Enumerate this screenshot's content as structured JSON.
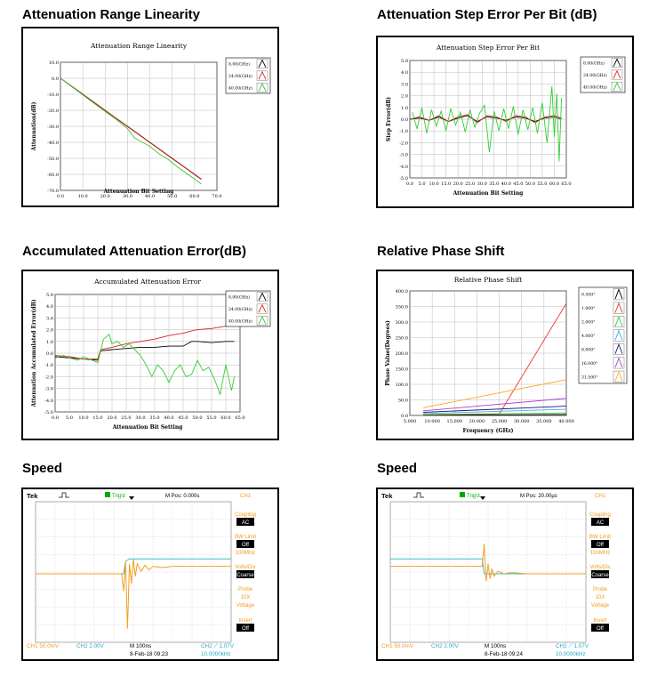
{
  "sections": {
    "s1": "Attenuation Range Linearity",
    "s2": "Attenuation Step Error Per Bit (dB)",
    "s3": "Accumulated Attenuation Error(dB)",
    "s4": "Relative Phase Shift",
    "s5": "Speed",
    "s6": "Speed"
  },
  "chart_data": [
    {
      "type": "line",
      "title": "Attenuation Range Linearity",
      "xlabel": "Attenuation Bit Setting",
      "ylabel": "Attenuation(dB)",
      "xlim": [
        0,
        70
      ],
      "ylim": [
        -70,
        10
      ],
      "xticks": [
        "0.0",
        "10.0",
        "20.0",
        "30.0",
        "40.0",
        "50.0",
        "60.0",
        "70.0"
      ],
      "yticks": [
        "10.0",
        "0.0",
        "-10.0",
        "-20.0",
        "-30.0",
        "-40.0",
        "-50.0",
        "-60.0",
        "-70.0"
      ],
      "legend_position": "top-right",
      "grid": true,
      "series": [
        {
          "name": "8.00(GHz)",
          "color": "#000000",
          "x": [
            0,
            8,
            16,
            24,
            32,
            40,
            48,
            56,
            63
          ],
          "y": [
            0,
            -7.9,
            -16,
            -24,
            -32,
            -40,
            -48,
            -56,
            -63
          ]
        },
        {
          "name": "24.00(GHz)",
          "color": "#dd2222",
          "x": [
            0,
            8,
            16,
            24,
            32,
            40,
            48,
            56,
            63
          ],
          "y": [
            0,
            -8,
            -16.1,
            -24.1,
            -32.2,
            -40.1,
            -48.2,
            -56.1,
            -63.2
          ]
        },
        {
          "name": "40.00(GHz)",
          "color": "#33cc33",
          "x": [
            0,
            5,
            10,
            15,
            20,
            25,
            30,
            33,
            36,
            40,
            44,
            48,
            52,
            56,
            60,
            63
          ],
          "y": [
            0,
            -5.2,
            -10.4,
            -15.6,
            -20.8,
            -25.8,
            -31.5,
            -37,
            -39.5,
            -42.5,
            -47,
            -50.5,
            -55,
            -59,
            -63,
            -66
          ]
        }
      ]
    },
    {
      "type": "line",
      "title": "Attenuation Step Error Per Bit",
      "xlabel": "Attenuation Bit Setting",
      "ylabel": "Step Error(dB)",
      "xlim": [
        0,
        65
      ],
      "ylim": [
        -5,
        5
      ],
      "xticks": [
        "0.0",
        "5.0",
        "10.0",
        "15.0",
        "20.0",
        "25.0",
        "30.0",
        "35.0",
        "40.0",
        "45.0",
        "50.0",
        "55.0",
        "60.0",
        "65.0"
      ],
      "yticks": [
        "5.0",
        "4.0",
        "3.0",
        "2.0",
        "1.0",
        "0.0",
        "-1.0",
        "-2.0",
        "-3.0",
        "-4.0",
        "-5.0"
      ],
      "legend_position": "top-right",
      "grid": true,
      "series": [
        {
          "name": "8.00(GHz)",
          "color": "#000000",
          "x": [
            0,
            4,
            8,
            12,
            16,
            20,
            24,
            28,
            32,
            36,
            40,
            44,
            48,
            52,
            56,
            60,
            63
          ],
          "y": [
            0,
            0.1,
            -0.1,
            0.2,
            -0.2,
            0.1,
            0.3,
            -0.2,
            0.2,
            0.1,
            -0.1,
            0.2,
            0.1,
            -0.2,
            0.1,
            0.2,
            0
          ]
        },
        {
          "name": "24.00(GHz)",
          "color": "#dd2222",
          "x": [
            0,
            4,
            8,
            12,
            16,
            20,
            24,
            28,
            32,
            36,
            40,
            44,
            48,
            52,
            56,
            60,
            63
          ],
          "y": [
            0,
            0.2,
            -0.1,
            0.3,
            -0.2,
            0.2,
            0.4,
            -0.3,
            0.3,
            0.2,
            -0.2,
            0.3,
            0.2,
            -0.3,
            0.2,
            0.3,
            0.1
          ]
        },
        {
          "name": "40.00(GHz)",
          "color": "#33cc33",
          "x": [
            1,
            3,
            5,
            7,
            9,
            11,
            13,
            15,
            17,
            19,
            21,
            23,
            25,
            27,
            29,
            31,
            33,
            35,
            37,
            39,
            41,
            43,
            45,
            47,
            49,
            51,
            53,
            55,
            57,
            59,
            60,
            61,
            62,
            63
          ],
          "y": [
            0.6,
            -0.8,
            1.0,
            -1.2,
            0.8,
            -0.6,
            0.7,
            -1.0,
            0.9,
            -0.5,
            0.6,
            -1.1,
            0.8,
            -0.7,
            0.5,
            1.2,
            -2.8,
            0.7,
            -1.0,
            0.9,
            -0.8,
            1.1,
            -1.3,
            0.8,
            -0.9,
            1.0,
            -1.2,
            1.4,
            -2.0,
            2.8,
            -1.5,
            2.2,
            -3.6,
            1.8
          ]
        }
      ]
    },
    {
      "type": "line",
      "title": "Accumulated Attenuation Error",
      "xlabel": "Attenuation Bit Setting",
      "ylabel": "Attenuation Accumulated Error(dB)",
      "xlim": [
        0,
        65
      ],
      "ylim": [
        -5,
        5
      ],
      "xticks": [
        "0.0",
        "5.0",
        "10.0",
        "15.0",
        "20.0",
        "25.0",
        "30.0",
        "35.0",
        "40.0",
        "45.0",
        "50.0",
        "55.0",
        "60.0",
        "65.0"
      ],
      "yticks": [
        "5.0",
        "4.0",
        "3.0",
        "2.0",
        "1.0",
        "0.0",
        "-1.0",
        "-2.0",
        "-3.0",
        "-4.0",
        "-5.0"
      ],
      "legend_position": "top-right",
      "grid": true,
      "series": [
        {
          "name": "8.00(GHz)",
          "color": "#000000",
          "x": [
            0,
            5,
            10,
            15,
            16,
            20,
            25,
            30,
            35,
            40,
            45,
            48,
            50,
            55,
            60,
            63
          ],
          "y": [
            -0.3,
            -0.4,
            -0.5,
            -0.6,
            0.2,
            0.3,
            0.4,
            0.5,
            0.5,
            0.6,
            0.6,
            1.0,
            1.0,
            0.9,
            1.0,
            1.0
          ]
        },
        {
          "name": "24.00(GHz)",
          "color": "#dd2222",
          "x": [
            0,
            5,
            10,
            15,
            16,
            20,
            25,
            30,
            35,
            40,
            45,
            48,
            50,
            55,
            60,
            63
          ],
          "y": [
            -0.2,
            -0.3,
            -0.5,
            -0.5,
            0.3,
            0.5,
            0.8,
            1.0,
            1.2,
            1.5,
            1.7,
            1.9,
            2.0,
            2.1,
            2.3,
            2.4
          ]
        },
        {
          "name": "40.00(GHz)",
          "color": "#33cc33",
          "x": [
            0,
            3,
            5,
            8,
            10,
            12,
            15,
            17,
            19,
            20,
            22,
            24,
            26,
            28,
            30,
            32,
            34,
            36,
            38,
            40,
            42,
            44,
            46,
            48,
            50,
            52,
            54,
            56,
            58,
            60,
            62,
            63
          ],
          "y": [
            -0.4,
            -0.2,
            -0.4,
            -0.6,
            -0.3,
            -0.5,
            -0.8,
            1.2,
            1.6,
            0.8,
            1.0,
            0.5,
            0.8,
            0.3,
            -0.2,
            -1.0,
            -2.0,
            -1.0,
            -1.5,
            -2.5,
            -1.5,
            -1.0,
            -2.0,
            -1.8,
            -0.6,
            -1.5,
            -1.2,
            -2.2,
            -3.5,
            -1.0,
            -3.2,
            -2.0
          ]
        }
      ]
    },
    {
      "type": "line",
      "title": "Relative Phase Shift",
      "xlabel": "Frequency (GHz)",
      "ylabel": "Phase Value(Degrees)",
      "xlim": [
        5,
        40
      ],
      "ylim": [
        0,
        400
      ],
      "xticks": [
        "5.000",
        "10.000",
        "15.000",
        "20.000",
        "25.000",
        "30.000",
        "35.000",
        "40.000"
      ],
      "yticks": [
        "400.0",
        "350.0",
        "300.0",
        "250.0",
        "200.0",
        "150.0",
        "100.0",
        "50.0",
        "0.0"
      ],
      "legend_position": "right",
      "grid": true,
      "series": [
        {
          "name": "0.500°",
          "color": "#000000",
          "x": [
            8,
            40
          ],
          "y": [
            1,
            3
          ]
        },
        {
          "name": "1.000°",
          "color": "#ee3333",
          "x": [
            8,
            25,
            40
          ],
          "y": [
            2,
            5,
            360
          ]
        },
        {
          "name": "2.000°",
          "color": "#33cc33",
          "x": [
            8,
            40
          ],
          "y": [
            3,
            8
          ]
        },
        {
          "name": "4.000°",
          "color": "#44aaee",
          "x": [
            8,
            40
          ],
          "y": [
            6,
            20
          ]
        },
        {
          "name": "8.000°",
          "color": "#1a1a80",
          "x": [
            8,
            40
          ],
          "y": [
            10,
            30
          ]
        },
        {
          "name": "16.000°",
          "color": "#aa44cc",
          "x": [
            8,
            40
          ],
          "y": [
            15,
            55
          ]
        },
        {
          "name": "31.500°",
          "color": "#ffaa22",
          "x": [
            8,
            40
          ],
          "y": [
            25,
            115
          ]
        }
      ]
    },
    {
      "type": "line",
      "title": "",
      "status": {
        "brand": "Tek",
        "trig": "Trig'd",
        "mpos": "M Pos: 0.000s",
        "ch1_label": "CH1",
        "coupling": "Coupling",
        "coupling_val": "AC",
        "bw_limit": "BW Limit",
        "bw_val": "Off",
        "bw_freq": "100MHz",
        "volts_div": "Volts/Div",
        "volts_val": "Coarse",
        "probe": "Probe",
        "probe_val": "10X",
        "probe_type": "Voltage",
        "invert": "Invert",
        "invert_val": "Off",
        "ch1_scale": "CH1  50.0mV",
        "ch2_scale": "CH2  2.00V",
        "timebase": "M 100ns",
        "date": "8-Feb-18 09:23",
        "trigger": "CH2 ⟋ 1.07V",
        "freq": "10.0000kHz"
      },
      "series": [
        {
          "name": "",
          "color": "#2ec4c4",
          "x": [
            0,
            45,
            46,
            48,
            100
          ],
          "y": [
            0,
            0,
            0.5,
            0.6,
            0.6
          ]
        },
        {
          "name": "",
          "color": "#f2a020",
          "x": [
            0,
            44,
            45,
            46,
            47,
            48,
            49,
            50,
            51,
            52,
            54,
            56,
            58,
            60,
            65,
            70,
            100
          ],
          "y": [
            0,
            0,
            -0.7,
            0.5,
            -2.2,
            0.4,
            -0.4,
            0.6,
            -0.1,
            0.4,
            0.1,
            0.35,
            0.15,
            0.3,
            0.25,
            0.3,
            0.3
          ]
        }
      ]
    },
    {
      "type": "line",
      "title": "",
      "status": {
        "brand": "Tek",
        "trig": "Trig'd",
        "mpos": "M Pos: 20.00µs",
        "ch1_label": "CH1",
        "coupling": "Coupling",
        "coupling_val": "AC",
        "bw_limit": "BW Limit",
        "bw_val": "Off",
        "bw_freq": "100MHz",
        "volts_div": "Volts/Div",
        "volts_val": "Coarse",
        "probe": "Probe",
        "probe_val": "10X",
        "probe_type": "Voltage",
        "invert": "Invert",
        "invert_val": "Off",
        "ch1_scale": "CH1  50.0mV",
        "ch2_scale": "CH2  2.00V",
        "timebase": "M 100ns",
        "date": "8-Feb-18 09:24",
        "trigger": "CH2 ⟋ 1.07V",
        "freq": "10.0000kHz"
      },
      "series": [
        {
          "name": "",
          "color": "#2ec4c4",
          "x": [
            0,
            47,
            48,
            100
          ],
          "y": [
            0.6,
            0.6,
            0,
            0
          ]
        },
        {
          "name": "",
          "color": "#f2a020",
          "x": [
            0,
            47,
            48,
            49,
            50,
            51,
            52,
            53,
            55,
            58,
            62,
            70,
            100
          ],
          "y": [
            0.3,
            0.3,
            1.2,
            -0.3,
            0.4,
            -0.2,
            0.2,
            -0.1,
            0.1,
            0,
            0.05,
            0,
            0
          ]
        }
      ]
    }
  ]
}
